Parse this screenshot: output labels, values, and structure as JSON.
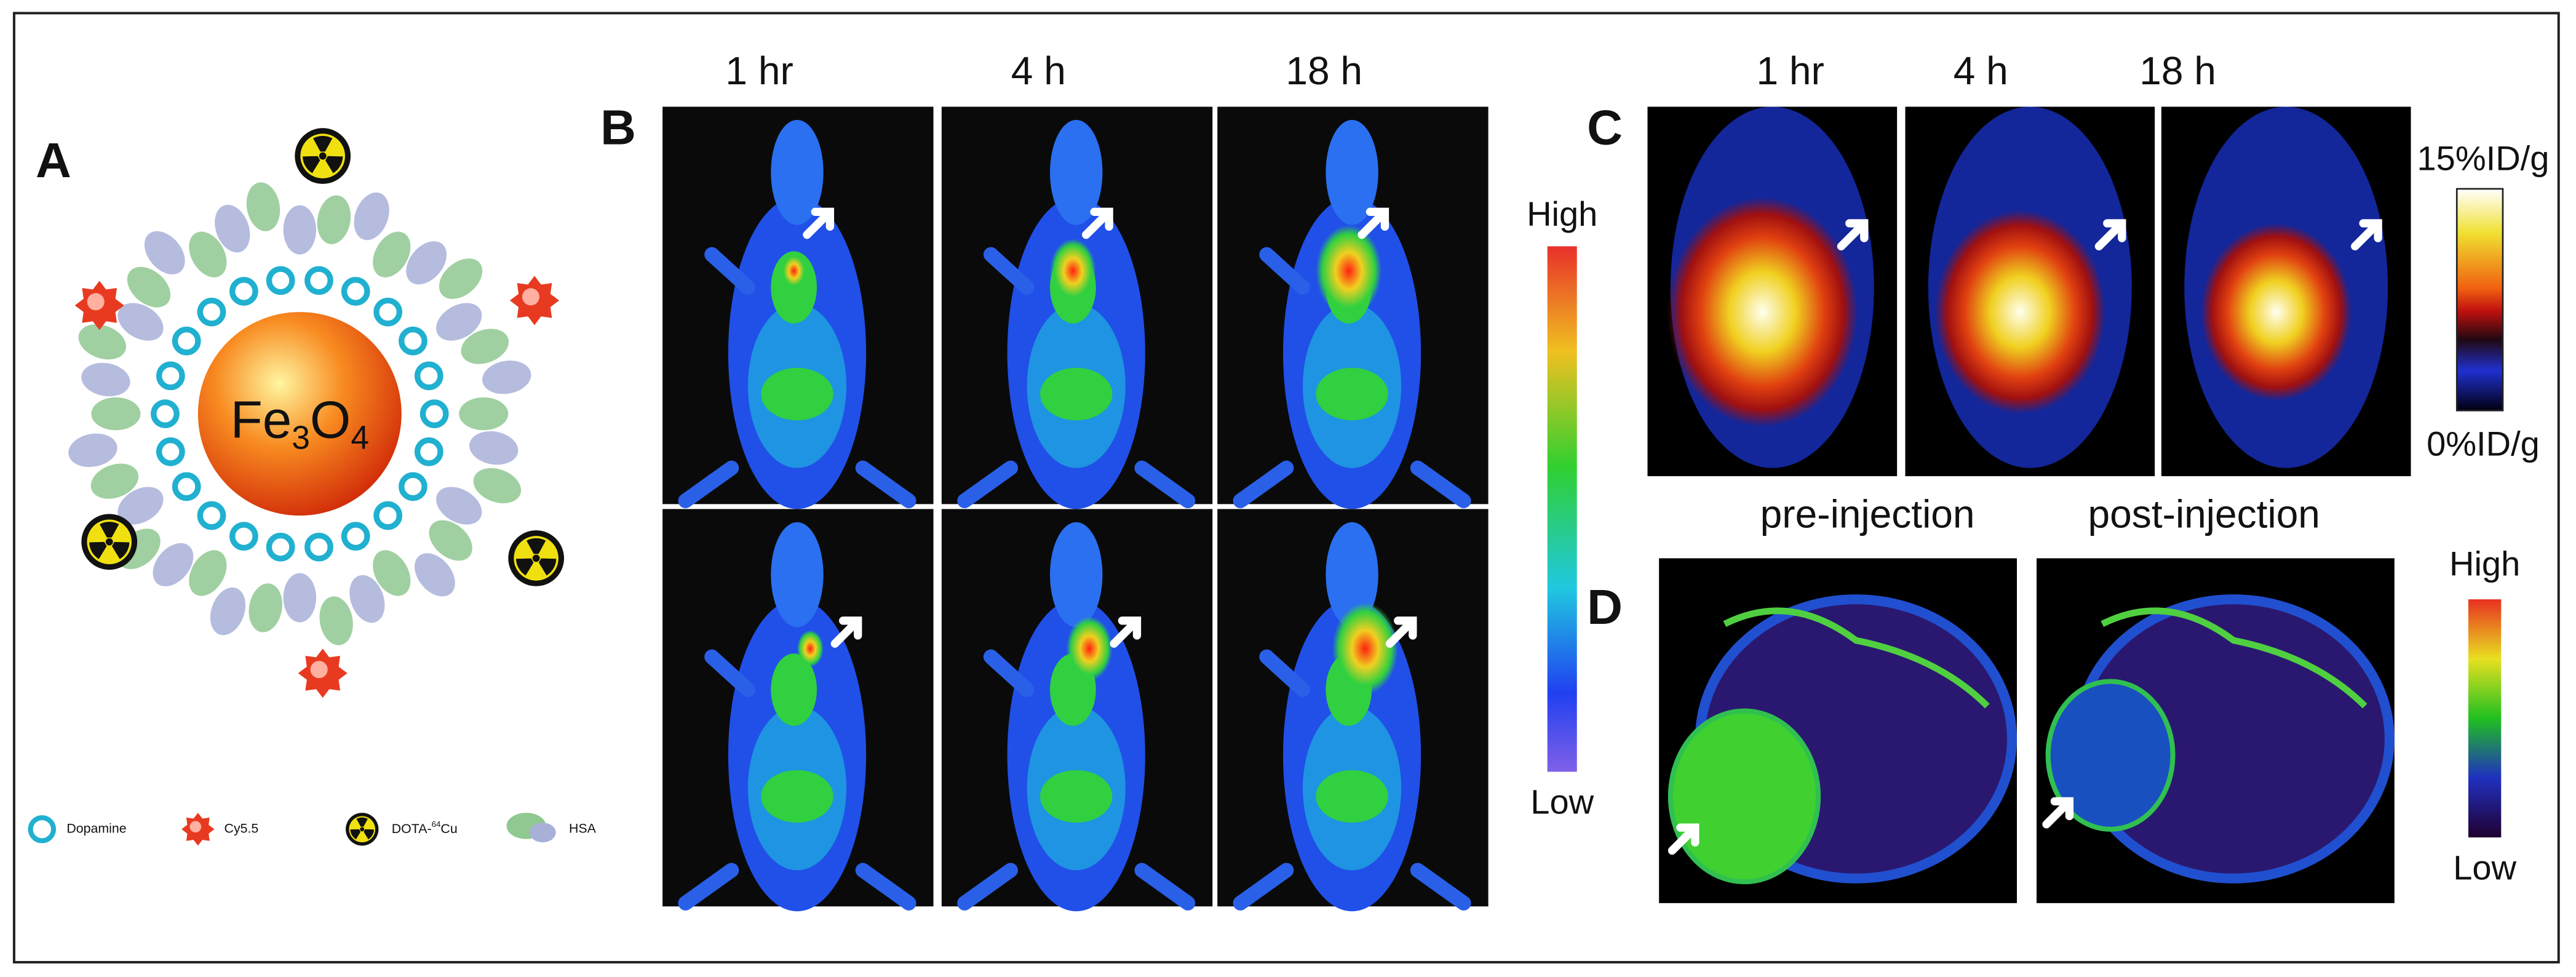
{
  "panel_a": {
    "label": "A",
    "core_formula": [
      "Fe",
      "3",
      "O",
      "4"
    ],
    "legend": {
      "dopamine": "Dopamine",
      "cy55": "Cy5.5",
      "dota": [
        "DOTA-",
        "64",
        "Cu"
      ],
      "hsa": "HSA"
    }
  },
  "panel_b": {
    "label": "B",
    "timepoints": [
      "1 hr",
      "4 h",
      "18 h"
    ],
    "scale_high": "High",
    "scale_low": "Low"
  },
  "panel_c": {
    "label": "C",
    "timepoints": [
      "1 hr",
      "4 h",
      "18 h"
    ],
    "scale_max": "15%ID/g",
    "scale_min": "0%ID/g"
  },
  "panel_d": {
    "label": "D",
    "conditions": [
      "pre-injection",
      "post-injection"
    ],
    "scale_high": "High",
    "scale_low": "Low"
  }
}
